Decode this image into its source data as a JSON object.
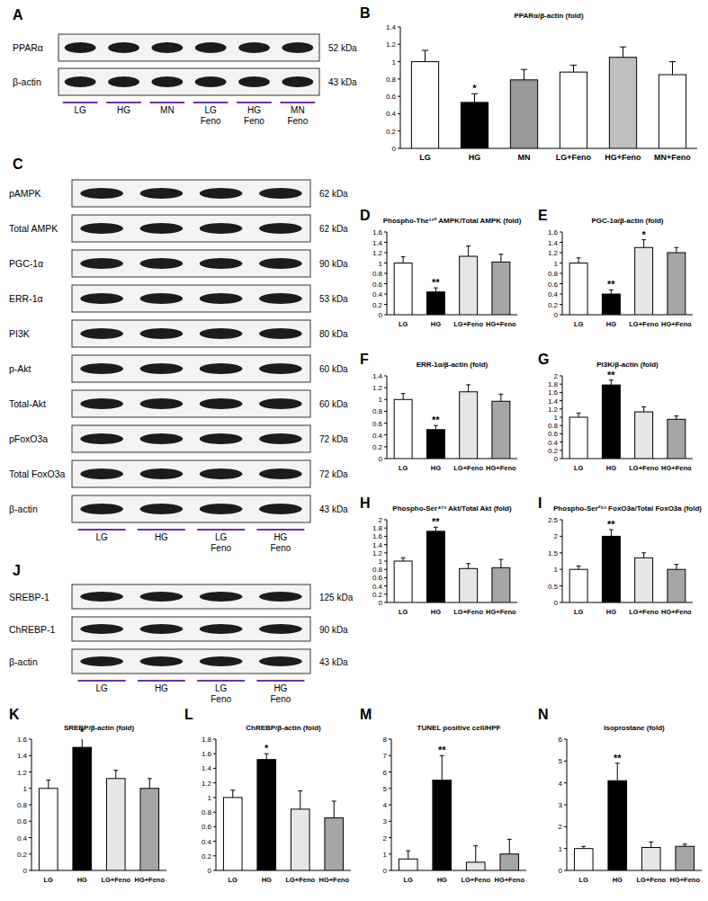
{
  "chart_data": [
    {
      "panel": "B",
      "type": "bar",
      "title": "PPARα/β-actin (fold)",
      "categories": [
        "LG",
        "HG",
        "MN",
        "LG+Feno",
        "HG+Feno",
        "MN+Feno"
      ],
      "values": [
        1.0,
        0.53,
        0.79,
        0.88,
        1.05,
        0.85
      ],
      "errors": [
        0.13,
        0.1,
        0.12,
        0.08,
        0.12,
        0.15
      ],
      "annotations": [
        null,
        "*",
        null,
        null,
        null,
        null
      ],
      "colors": [
        "#ffffff",
        "#000000",
        "#999999",
        "#ffffff",
        "#bfbfbf",
        "#ffffff"
      ],
      "ylim": [
        0,
        1.4
      ],
      "yticks": [
        0,
        0.2,
        0.4,
        0.6,
        0.8,
        1,
        1.2,
        1.4
      ]
    },
    {
      "panel": "D",
      "type": "bar",
      "title": "Phospho-The¹⁷² AMPK/Total AMPK (fold)",
      "categories": [
        "LG",
        "HG",
        "LG+Feno",
        "HG+Feno"
      ],
      "values": [
        1.0,
        0.44,
        1.13,
        1.02
      ],
      "errors": [
        0.12,
        0.08,
        0.2,
        0.15
      ],
      "annotations": [
        null,
        "**",
        null,
        null
      ],
      "colors": [
        "#ffffff",
        "#000000",
        "#e6e6e6",
        "#a6a6a6"
      ],
      "ylim": [
        0,
        1.6
      ],
      "yticks": [
        0,
        0.2,
        0.4,
        0.6,
        0.8,
        1,
        1.2,
        1.4,
        1.6
      ]
    },
    {
      "panel": "E",
      "type": "bar",
      "title": "PGC-1α/β-actin (fold)",
      "categories": [
        "LG",
        "HG",
        "LG+Feno",
        "HG+Feno"
      ],
      "values": [
        1.0,
        0.4,
        1.3,
        1.2
      ],
      "errors": [
        0.1,
        0.08,
        0.15,
        0.1
      ],
      "annotations": [
        null,
        "**",
        "*",
        null
      ],
      "colors": [
        "#ffffff",
        "#000000",
        "#e6e6e6",
        "#a6a6a6"
      ],
      "ylim": [
        0,
        1.6
      ],
      "yticks": [
        0,
        0.2,
        0.4,
        0.6,
        0.8,
        1,
        1.2,
        1.4,
        1.6
      ]
    },
    {
      "panel": "F",
      "type": "bar",
      "title": "ERR-1α/β-actin (fold)",
      "categories": [
        "LG",
        "HG",
        "LG+Feno",
        "HG+Feno"
      ],
      "values": [
        1.0,
        0.49,
        1.13,
        0.97
      ],
      "errors": [
        0.1,
        0.07,
        0.12,
        0.12
      ],
      "annotations": [
        null,
        "**",
        null,
        null
      ],
      "colors": [
        "#ffffff",
        "#000000",
        "#e6e6e6",
        "#a6a6a6"
      ],
      "ylim": [
        0,
        1.4
      ],
      "yticks": [
        0,
        0.2,
        0.4,
        0.6,
        0.8,
        1,
        1.2,
        1.4
      ]
    },
    {
      "panel": "G",
      "type": "bar",
      "title": "PI3K/β-actin (fold)",
      "categories": [
        "LG",
        "HG",
        "LG+Feno",
        "HG+Feno"
      ],
      "values": [
        1.0,
        1.78,
        1.13,
        0.95
      ],
      "errors": [
        0.1,
        0.12,
        0.12,
        0.08
      ],
      "annotations": [
        null,
        "**",
        null,
        null
      ],
      "colors": [
        "#ffffff",
        "#000000",
        "#e6e6e6",
        "#a6a6a6"
      ],
      "ylim": [
        0,
        2
      ],
      "yticks": [
        0,
        0.2,
        0.4,
        0.6,
        0.8,
        1,
        1.2,
        1.4,
        1.6,
        1.8,
        2
      ]
    },
    {
      "panel": "H",
      "type": "bar",
      "title": "Phospho-Ser⁴⁷³ Akt/Total Akt (fold)",
      "categories": [
        "LG",
        "HG",
        "LG+Feno",
        "HG+Feno"
      ],
      "values": [
        1.0,
        1.72,
        0.82,
        0.84
      ],
      "errors": [
        0.08,
        0.1,
        0.12,
        0.2
      ],
      "annotations": [
        null,
        "**",
        null,
        null
      ],
      "colors": [
        "#ffffff",
        "#000000",
        "#e6e6e6",
        "#a6a6a6"
      ],
      "ylim": [
        0,
        2
      ],
      "yticks": [
        0,
        0.2,
        0.4,
        0.6,
        0.8,
        1,
        1.2,
        1.4,
        1.6,
        1.8,
        2
      ]
    },
    {
      "panel": "I",
      "type": "bar",
      "title": "Phospho-Ser²⁵³ FoxO3a/Total FoxO3a (fold)",
      "categories": [
        "LG",
        "HG",
        "LG+Feno",
        "HG+Feno"
      ],
      "values": [
        1.0,
        2.0,
        1.35,
        1.0
      ],
      "errors": [
        0.1,
        0.2,
        0.15,
        0.15
      ],
      "annotations": [
        null,
        "**",
        null,
        null
      ],
      "colors": [
        "#ffffff",
        "#000000",
        "#e6e6e6",
        "#a6a6a6"
      ],
      "ylim": [
        0,
        2.5
      ],
      "yticks": [
        0,
        0.5,
        1,
        1.5,
        2,
        2.5
      ]
    },
    {
      "panel": "K",
      "type": "bar",
      "title": "SREBP/β-actin (fold)",
      "categories": [
        "LG",
        "HG",
        "LG+Feno",
        "HG+Feno"
      ],
      "values": [
        1.0,
        1.5,
        1.12,
        1.0
      ],
      "errors": [
        0.1,
        0.12,
        0.1,
        0.12
      ],
      "annotations": [
        null,
        "*",
        null,
        null
      ],
      "colors": [
        "#ffffff",
        "#000000",
        "#e6e6e6",
        "#a6a6a6"
      ],
      "ylim": [
        0,
        1.6
      ],
      "yticks": [
        0,
        0.2,
        0.4,
        0.6,
        0.8,
        1,
        1.2,
        1.4,
        1.6
      ]
    },
    {
      "panel": "L",
      "type": "bar",
      "title": "ChREBP/β-actin (fold)",
      "categories": [
        "LG",
        "HG",
        "LG+Feno",
        "HG+Feno"
      ],
      "values": [
        1.0,
        1.52,
        0.84,
        0.72
      ],
      "errors": [
        0.1,
        0.08,
        0.25,
        0.23
      ],
      "annotations": [
        null,
        "*",
        null,
        null
      ],
      "colors": [
        "#ffffff",
        "#000000",
        "#e6e6e6",
        "#a6a6a6"
      ],
      "ylim": [
        0,
        1.8
      ],
      "yticks": [
        0,
        0.2,
        0.4,
        0.6,
        0.8,
        1,
        1.2,
        1.4,
        1.6,
        1.8
      ]
    },
    {
      "panel": "M",
      "type": "bar",
      "title": "TUNEL positive cell/HPF",
      "categories": [
        "LG",
        "HG",
        "LG+Feno",
        "HG+Feno"
      ],
      "values": [
        0.7,
        5.5,
        0.5,
        1.0
      ],
      "errors": [
        0.5,
        1.5,
        1.0,
        0.9
      ],
      "annotations": [
        null,
        "**",
        null,
        null
      ],
      "colors": [
        "#ffffff",
        "#000000",
        "#e6e6e6",
        "#a6a6a6"
      ],
      "ylim": [
        0,
        8
      ],
      "yticks": [
        0,
        1,
        2,
        3,
        4,
        5,
        6,
        7,
        8
      ]
    },
    {
      "panel": "N",
      "type": "bar",
      "title": "Isoprostane (fold)",
      "categories": [
        "LG",
        "HG",
        "LG+Feno",
        "HG+Feno"
      ],
      "values": [
        1.0,
        4.1,
        1.05,
        1.1
      ],
      "errors": [
        0.1,
        0.8,
        0.25,
        0.1
      ],
      "annotations": [
        null,
        "**",
        null,
        null
      ],
      "colors": [
        "#ffffff",
        "#000000",
        "#e6e6e6",
        "#a6a6a6"
      ],
      "ylim": [
        0,
        6
      ],
      "yticks": [
        0,
        1,
        2,
        3,
        4,
        5,
        6
      ]
    }
  ],
  "blots": [
    {
      "panel": "A",
      "rows": [
        {
          "label": "PPARα",
          "size": "52 kDa"
        },
        {
          "label": "β-actin",
          "size": "43 kDa"
        }
      ],
      "lanes": [
        "LG",
        "HG",
        "MN",
        "LG Feno",
        "HG Feno",
        "MN Feno"
      ]
    },
    {
      "panel": "C",
      "rows": [
        {
          "label": "pAMPK",
          "size": "62 kDa"
        },
        {
          "label": "Total AMPK",
          "size": "62 kDa"
        },
        {
          "label": "PGC-1α",
          "size": "90 kDa"
        },
        {
          "label": "ERR-1α",
          "size": "53 kDa"
        },
        {
          "label": "PI3K",
          "size": "80 kDa"
        },
        {
          "label": "p-Akt",
          "size": "60 kDa"
        },
        {
          "label": "Total-Akt",
          "size": "60 kDa"
        },
        {
          "label": "pFoxO3a",
          "size": "72 kDa"
        },
        {
          "label": "Total FoxO3a",
          "size": "72 kDa"
        },
        {
          "label": "β-actin",
          "size": "43 kDa"
        }
      ],
      "lanes": [
        "LG",
        "HG",
        "LG Feno",
        "HG Feno"
      ]
    },
    {
      "panel": "J",
      "rows": [
        {
          "label": "SREBP-1",
          "size": "125 kDa"
        },
        {
          "label": "ChREBP-1",
          "size": "90 kDa"
        },
        {
          "label": "β-actin",
          "size": "43 kDa"
        }
      ],
      "lanes": [
        "LG",
        "HG",
        "LG Feno",
        "HG Feno"
      ]
    }
  ]
}
